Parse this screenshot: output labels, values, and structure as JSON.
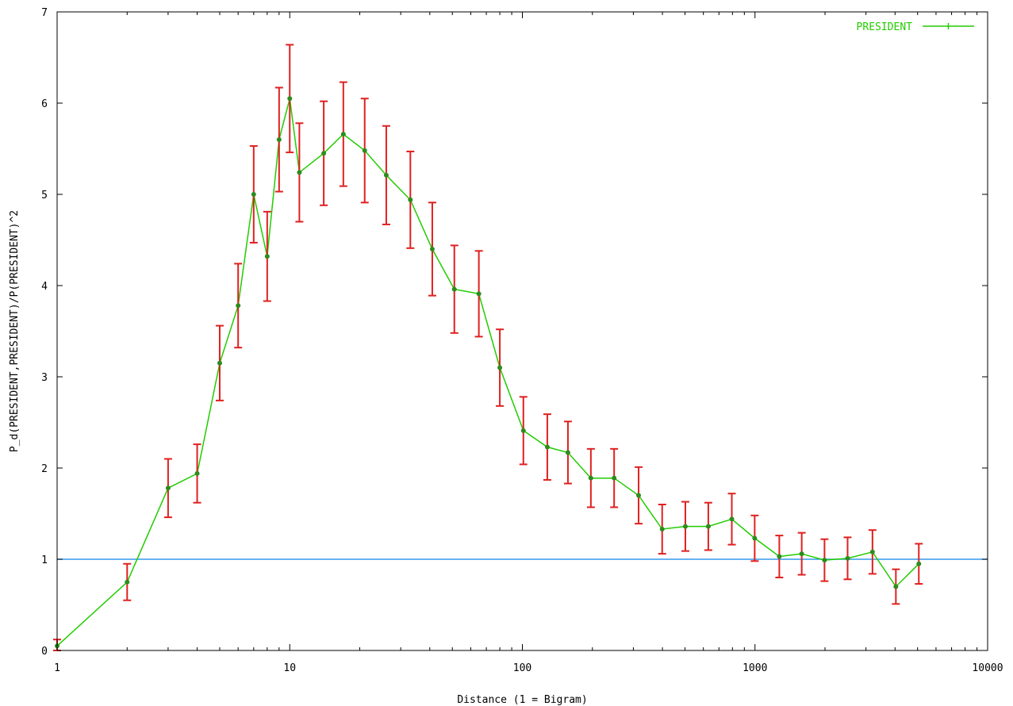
{
  "chart_data": {
    "type": "line",
    "xlabel": "Distance (1 = Bigram)",
    "ylabel": "P_d(PRESIDENT,PRESIDENT)/P(PRESIDENT)^2",
    "x_scale": "log",
    "xlim": [
      1,
      10000
    ],
    "ylim": [
      0,
      7
    ],
    "x_ticks": [
      1,
      10,
      100,
      1000,
      10000
    ],
    "x_tick_labels": [
      "1",
      "10",
      "100",
      "1000",
      "10000"
    ],
    "y_ticks": [
      0,
      1,
      2,
      3,
      4,
      5,
      6,
      7
    ],
    "y_tick_labels": [
      "0",
      "1",
      "2",
      "3",
      "4",
      "5",
      "6",
      "7"
    ],
    "grid": false,
    "legend_position": "top-right",
    "colors": {
      "series": "#22cc00",
      "marker": "#2e8b20",
      "error_bar": "#e02020",
      "reference_line": "#3399ee",
      "axes": "#000000"
    },
    "series": [
      {
        "name": "PRESIDENT",
        "points": [
          {
            "x": 1,
            "y": 0.05,
            "err": 0.07
          },
          {
            "x": 2,
            "y": 0.75,
            "err": 0.2
          },
          {
            "x": 3,
            "y": 1.78,
            "err": 0.32
          },
          {
            "x": 4,
            "y": 1.94,
            "err": 0.32
          },
          {
            "x": 5,
            "y": 3.15,
            "err": 0.41
          },
          {
            "x": 6,
            "y": 3.78,
            "err": 0.46
          },
          {
            "x": 7,
            "y": 5.0,
            "err": 0.53
          },
          {
            "x": 8,
            "y": 4.32,
            "err": 0.49
          },
          {
            "x": 9,
            "y": 5.6,
            "err": 0.57
          },
          {
            "x": 10,
            "y": 6.05,
            "err": 0.59
          },
          {
            "x": 11,
            "y": 5.24,
            "err": 0.54
          },
          {
            "x": 14,
            "y": 5.45,
            "err": 0.57
          },
          {
            "x": 17,
            "y": 5.66,
            "err": 0.57
          },
          {
            "x": 21,
            "y": 5.48,
            "err": 0.57
          },
          {
            "x": 26,
            "y": 5.21,
            "err": 0.54
          },
          {
            "x": 33,
            "y": 4.94,
            "err": 0.53
          },
          {
            "x": 41,
            "y": 4.4,
            "err": 0.51
          },
          {
            "x": 51,
            "y": 3.96,
            "err": 0.48
          },
          {
            "x": 65,
            "y": 3.91,
            "err": 0.47
          },
          {
            "x": 80,
            "y": 3.1,
            "err": 0.42
          },
          {
            "x": 101,
            "y": 2.41,
            "err": 0.37
          },
          {
            "x": 128,
            "y": 2.23,
            "err": 0.36
          },
          {
            "x": 157,
            "y": 2.17,
            "err": 0.34
          },
          {
            "x": 197,
            "y": 1.89,
            "err": 0.32
          },
          {
            "x": 248,
            "y": 1.89,
            "err": 0.32
          },
          {
            "x": 316,
            "y": 1.7,
            "err": 0.31
          },
          {
            "x": 399,
            "y": 1.33,
            "err": 0.27
          },
          {
            "x": 502,
            "y": 1.36,
            "err": 0.27
          },
          {
            "x": 630,
            "y": 1.36,
            "err": 0.26
          },
          {
            "x": 795,
            "y": 1.44,
            "err": 0.28
          },
          {
            "x": 997,
            "y": 1.23,
            "err": 0.25
          },
          {
            "x": 1272,
            "y": 1.03,
            "err": 0.23
          },
          {
            "x": 1588,
            "y": 1.06,
            "err": 0.23
          },
          {
            "x": 1990,
            "y": 0.99,
            "err": 0.23
          },
          {
            "x": 2501,
            "y": 1.01,
            "err": 0.23
          },
          {
            "x": 3199,
            "y": 1.08,
            "err": 0.24
          },
          {
            "x": 4033,
            "y": 0.7,
            "err": 0.19
          },
          {
            "x": 5061,
            "y": 0.95,
            "err": 0.22
          }
        ]
      }
    ],
    "reference_line": {
      "y": 1
    }
  }
}
